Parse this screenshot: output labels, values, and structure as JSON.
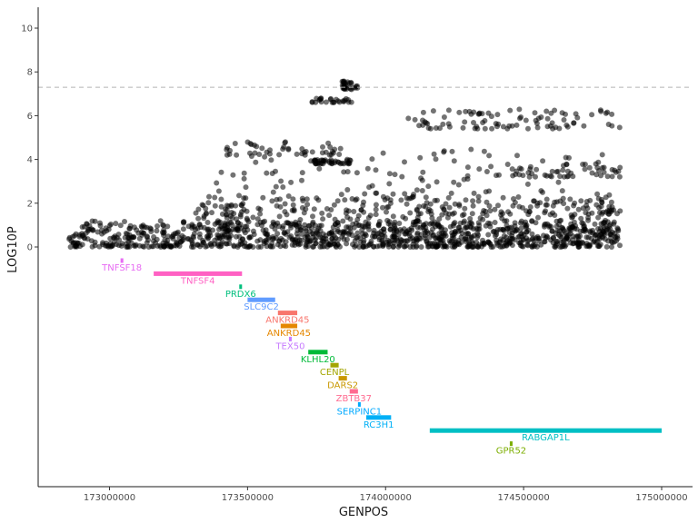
{
  "chart_data": {
    "type": "scatter",
    "title": "",
    "xlabel": "GENPOS",
    "ylabel": "LOG10P",
    "xlim": [
      172750000,
      175110000
    ],
    "ylim": [
      -11,
      11
    ],
    "x_ticks": [
      173000000,
      173500000,
      174000000,
      174500000,
      175000000
    ],
    "x_tick_labels": [
      "173000000",
      "173500000",
      "174000000",
      "174500000",
      "175000000"
    ],
    "y_ticks": [
      0,
      2,
      4,
      6,
      8,
      10
    ],
    "y_tick_labels": [
      "0",
      "2",
      "4",
      "6",
      "8",
      "10"
    ],
    "significance_threshold": 7.3,
    "snp_range": [
      172850000,
      174850000
    ],
    "snp_clusters": [
      {
        "x0": 172850000,
        "x1": 174850000,
        "y0": 0.0,
        "y1": 1.2,
        "n": 900
      },
      {
        "x0": 173300000,
        "x1": 174850000,
        "y0": 0.4,
        "y1": 2.3,
        "n": 420
      },
      {
        "x0": 173350000,
        "x1": 174850000,
        "y0": 1.5,
        "y1": 4.5,
        "n": 180
      },
      {
        "x0": 173740000,
        "x1": 173880000,
        "y0": 3.8,
        "y1": 4.0,
        "n": 40
      },
      {
        "x0": 173720000,
        "x1": 173880000,
        "y0": 6.6,
        "y1": 6.8,
        "n": 25
      },
      {
        "x0": 173840000,
        "x1": 173900000,
        "y0": 7.2,
        "y1": 7.6,
        "n": 30
      },
      {
        "x0": 174080000,
        "x1": 174850000,
        "y0": 5.4,
        "y1": 6.3,
        "n": 90
      },
      {
        "x0": 174400000,
        "x1": 174850000,
        "y0": 3.2,
        "y1": 3.8,
        "n": 50
      },
      {
        "x0": 173400000,
        "x1": 173850000,
        "y0": 4.2,
        "y1": 4.8,
        "n": 40
      }
    ],
    "genes": [
      {
        "name": "TNFSF18",
        "start": 173040000,
        "end": 173050000,
        "row": 1,
        "color": "#E76BF3"
      },
      {
        "name": "TNFSF4",
        "start": 173160000,
        "end": 173480000,
        "row": 2,
        "color": "#FF61C3"
      },
      {
        "name": "PRDX6",
        "start": 173470000,
        "end": 173480000,
        "row": 3,
        "color": "#00BF7D"
      },
      {
        "name": "SLC9C2",
        "start": 173500000,
        "end": 173600000,
        "row": 4,
        "color": "#619CFF"
      },
      {
        "name": "ANKRD45",
        "start": 173610000,
        "end": 173680000,
        "row": 5,
        "color": "#F8766D"
      },
      {
        "name": "ANKRD45",
        "start": 173620000,
        "end": 173680000,
        "row": 6,
        "color": "#E58700"
      },
      {
        "name": "TEX50",
        "start": 173650000,
        "end": 173660000,
        "row": 7,
        "color": "#C77CFF"
      },
      {
        "name": "KLHL20",
        "start": 173720000,
        "end": 173790000,
        "row": 8,
        "color": "#00BA38"
      },
      {
        "name": "CENPL",
        "start": 173800000,
        "end": 173830000,
        "row": 9,
        "color": "#A3A500"
      },
      {
        "name": "DARS2",
        "start": 173830000,
        "end": 173860000,
        "row": 10,
        "color": "#C99800"
      },
      {
        "name": "ZBTB37",
        "start": 173870000,
        "end": 173900000,
        "row": 11,
        "color": "#FF6C91"
      },
      {
        "name": "SERPINC1",
        "start": 173900000,
        "end": 173910000,
        "row": 12,
        "color": "#00A9FF"
      },
      {
        "name": "RC3H1",
        "start": 173930000,
        "end": 174020000,
        "row": 13,
        "color": "#00B0F6"
      },
      {
        "name": "RABGAP1L",
        "start": 174160000,
        "end": 175000000,
        "row": 14,
        "color": "#00BFC4"
      },
      {
        "name": "GPR52",
        "start": 174450000,
        "end": 174460000,
        "row": 15,
        "color": "#7CAE00"
      }
    ]
  }
}
